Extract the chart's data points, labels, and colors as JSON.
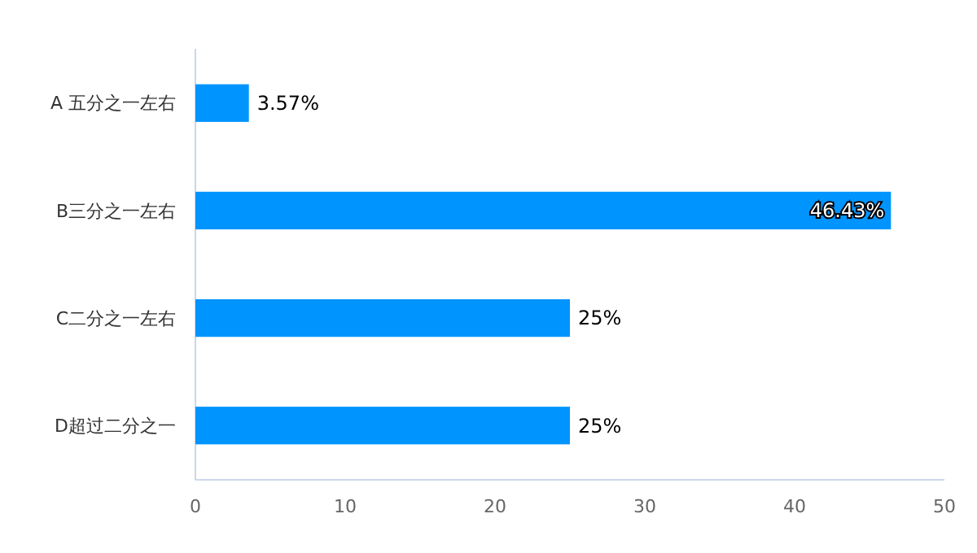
{
  "chart_data": {
    "type": "bar",
    "orientation": "horizontal",
    "categories": [
      "A 五分之一左右",
      "B三分之一左右",
      "C二分之一左右",
      "D超过二分之一"
    ],
    "values": [
      3.57,
      46.43,
      25,
      25
    ],
    "value_labels": [
      "3.57%",
      "46.43%",
      "25%",
      "25%"
    ],
    "color": "#0094ff",
    "xlim": [
      0,
      50
    ],
    "xticks": [
      0,
      10,
      20,
      30,
      40,
      50
    ],
    "grid": false
  }
}
